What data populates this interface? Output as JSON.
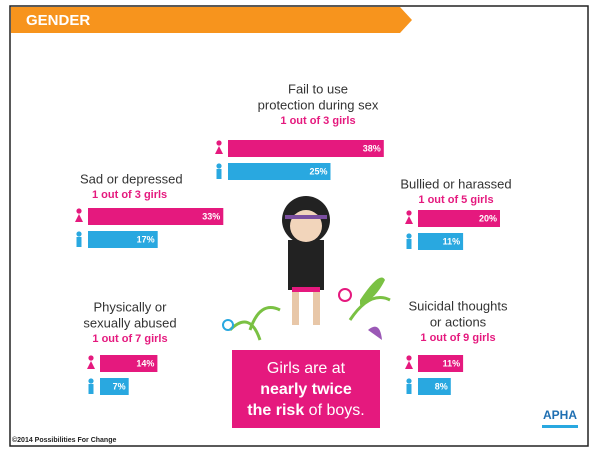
{
  "header": {
    "title": "GENDER"
  },
  "panels": [
    {
      "label": [
        "Fail to use",
        "protection during sex"
      ],
      "ratio": "1 out of 3 girls",
      "girls": 38,
      "girls_label": "38%",
      "boys": 25,
      "boys_label": "25%"
    },
    {
      "label": [
        "Sad or depressed"
      ],
      "ratio": "1 out of 3 girls",
      "girls": 33,
      "girls_label": "33%",
      "boys": 17,
      "boys_label": "17%"
    },
    {
      "label": [
        "Bullied or harassed"
      ],
      "ratio": "1 out of 5 girls",
      "girls": 20,
      "girls_label": "20%",
      "boys": 11,
      "boys_label": "11%"
    },
    {
      "label": [
        "Physically or",
        "sexually abused"
      ],
      "ratio": "1 out of 7 girls",
      "girls": 14,
      "girls_label": "14%",
      "boys": 7,
      "boys_label": "7%"
    },
    {
      "label": [
        "Suicidal thoughts",
        "or actions"
      ],
      "ratio": "1 out of 9 girls",
      "girls": 11,
      "girls_label": "11%",
      "boys": 8,
      "boys_label": "8%"
    }
  ],
  "callout": {
    "line1": "Girls are at",
    "line2": "nearly twice",
    "line3_bold": "the risk",
    "line3_rest": " of boys."
  },
  "footer": "©2014 Possibilities For Change",
  "logo": "APHA"
}
